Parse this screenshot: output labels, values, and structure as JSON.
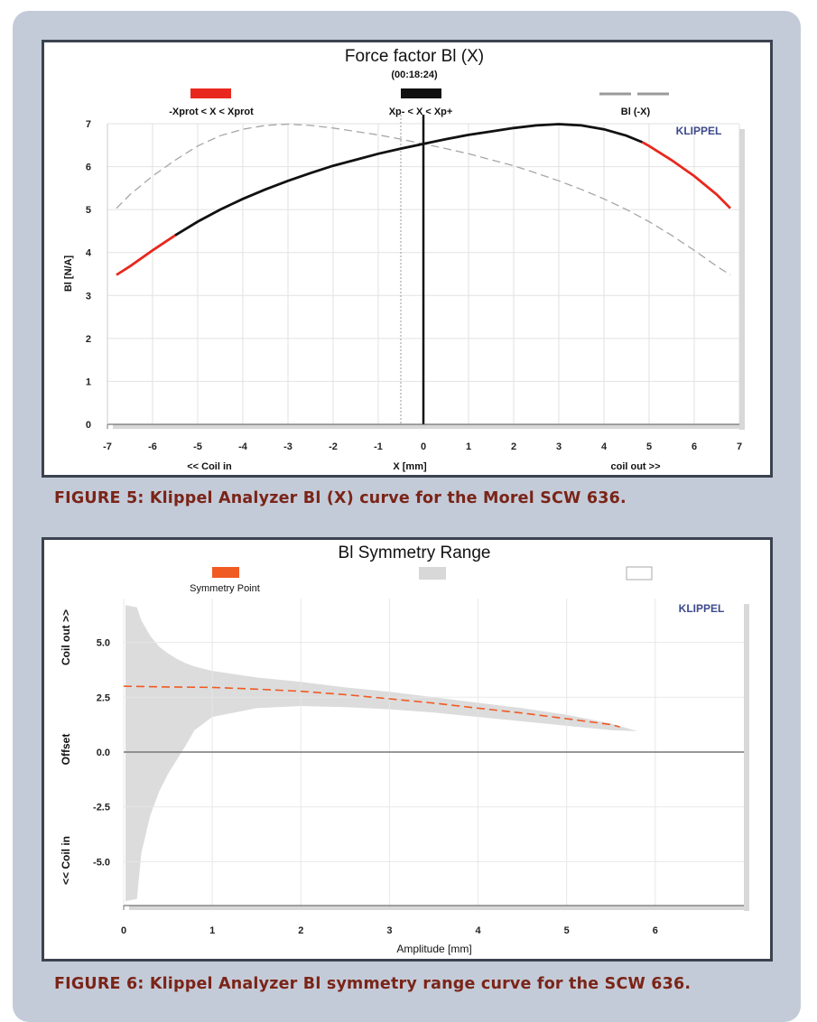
{
  "captions": {
    "figure5": "FIGURE 5: Klippel Analyzer Bl (X) curve for the Morel SCW 636.",
    "figure6": "FIGURE 6: Klippel Analyzer Bl symmetry range curve for the SCW 636."
  },
  "chart_data": [
    {
      "type": "line",
      "title": "Force factor Bl (X)",
      "subtitle": "(00:18:24)",
      "brand": "KLIPPEL",
      "xlabel": "X [mm]",
      "xlabel_left": "<< Coil in",
      "xlabel_right": "coil out >>",
      "ylabel": "Bl [N/A]",
      "xlim": [
        -7,
        7
      ],
      "ylim": [
        0,
        7
      ],
      "xticks": [
        -7,
        -6,
        -5,
        -4,
        -3,
        -2,
        -1,
        0,
        1,
        2,
        3,
        4,
        5,
        6,
        7
      ],
      "yticks": [
        0,
        1,
        2,
        3,
        4,
        5,
        6,
        7
      ],
      "grid": true,
      "legend": [
        {
          "label": "-Xprot < X < Xprot",
          "color": "#e8281e",
          "style": "solid"
        },
        {
          "label": "Xp- < X < Xp+",
          "color": "#111111",
          "style": "solid"
        },
        {
          "label": "Bl (-X)",
          "color": "#9a9a9a",
          "style": "dashed"
        }
      ],
      "legend_placement": "top",
      "vertical_lines": [
        {
          "x": 0,
          "color": "#111111",
          "style": "solid"
        },
        {
          "x": -0.5,
          "color": "#999999",
          "style": "dotted"
        }
      ],
      "x_inner_range": [
        -5.5,
        4.85
      ],
      "series": [
        {
          "x": [
            -6.8,
            -6.5,
            -6.0,
            -5.5,
            -5.0,
            -4.5,
            -4.0,
            -3.5,
            -3.0,
            -2.5,
            -2.0,
            -1.5,
            -1.0,
            -0.5,
            0.0,
            0.5,
            1.0,
            1.5,
            2.0,
            2.5,
            3.0,
            3.5,
            4.0,
            4.5,
            4.85,
            5.0,
            5.5,
            6.0,
            6.5,
            6.8
          ],
          "y": [
            3.48,
            3.68,
            4.05,
            4.4,
            4.72,
            5.0,
            5.25,
            5.47,
            5.67,
            5.85,
            6.02,
            6.16,
            6.3,
            6.42,
            6.53,
            6.64,
            6.74,
            6.82,
            6.9,
            6.96,
            6.99,
            6.96,
            6.87,
            6.72,
            6.57,
            6.48,
            6.15,
            5.78,
            5.35,
            5.03
          ]
        },
        {
          "x": [
            -6.8,
            -6.5,
            -6.0,
            -5.5,
            -5.0,
            -4.5,
            -4.0,
            -3.5,
            -3.0,
            -2.5,
            -2.0,
            -1.5,
            -1.0,
            -0.5,
            0.0,
            0.5,
            1.0,
            1.5,
            2.0,
            2.5,
            3.0,
            3.5,
            4.0,
            4.5,
            5.0,
            5.5,
            6.0,
            6.5,
            6.8
          ],
          "y": [
            5.03,
            5.35,
            5.78,
            6.15,
            6.48,
            6.72,
            6.87,
            6.96,
            6.99,
            6.96,
            6.9,
            6.82,
            6.74,
            6.64,
            6.53,
            6.42,
            6.3,
            6.16,
            6.02,
            5.85,
            5.67,
            5.47,
            5.25,
            5.0,
            4.72,
            4.4,
            4.05,
            3.68,
            3.48
          ]
        }
      ]
    },
    {
      "type": "area",
      "title": "Bl Symmetry Range",
      "brand": "KLIPPEL",
      "xlabel": "Amplitude [mm]",
      "ylabel": "Offset",
      "ylabel_top": "Coil out >>",
      "ylabel_bottom": "<< Coil in",
      "xlim": [
        0,
        7
      ],
      "ylim": [
        -7,
        7
      ],
      "xticks": [
        0,
        1,
        2,
        3,
        4,
        5,
        6
      ],
      "yticks": [
        5.0,
        2.5,
        0.0,
        -2.5,
        -5.0
      ],
      "grid": true,
      "legend": [
        {
          "label": "Symmetry Point",
          "color": "#f05a23",
          "style": "solid"
        },
        {
          "label": "",
          "color": "#d8d8d8",
          "style": "fill"
        },
        {
          "label": "",
          "color": "#ffffff",
          "style": "fill"
        }
      ],
      "legend_placement": "top",
      "series": [
        {
          "x": [
            0.0,
            0.5,
            1.0,
            1.5,
            2.0,
            2.5,
            3.0,
            3.5,
            4.0,
            4.5,
            5.0,
            5.5,
            5.6
          ],
          "y": [
            3.0,
            2.97,
            2.95,
            2.87,
            2.77,
            2.62,
            2.43,
            2.23,
            2.0,
            1.78,
            1.52,
            1.25,
            1.15
          ]
        }
      ],
      "band": {
        "x": [
          0.02,
          0.15,
          0.2,
          0.3,
          0.4,
          0.5,
          0.6,
          0.7,
          0.8,
          1.0,
          1.5,
          2.0,
          2.5,
          3.0,
          3.5,
          4.0,
          4.5,
          5.0,
          5.5,
          5.8
        ],
        "upper": [
          6.7,
          6.6,
          6.0,
          5.3,
          4.8,
          4.5,
          4.25,
          4.05,
          3.9,
          3.7,
          3.4,
          3.2,
          2.95,
          2.75,
          2.5,
          2.25,
          2.0,
          1.7,
          1.3,
          0.95
        ],
        "lower": [
          -6.8,
          -6.7,
          -4.6,
          -2.9,
          -1.8,
          -1.0,
          -0.35,
          0.3,
          1.0,
          1.6,
          2.0,
          2.1,
          2.05,
          1.95,
          1.8,
          1.6,
          1.4,
          1.2,
          1.0,
          0.95
        ]
      }
    }
  ]
}
